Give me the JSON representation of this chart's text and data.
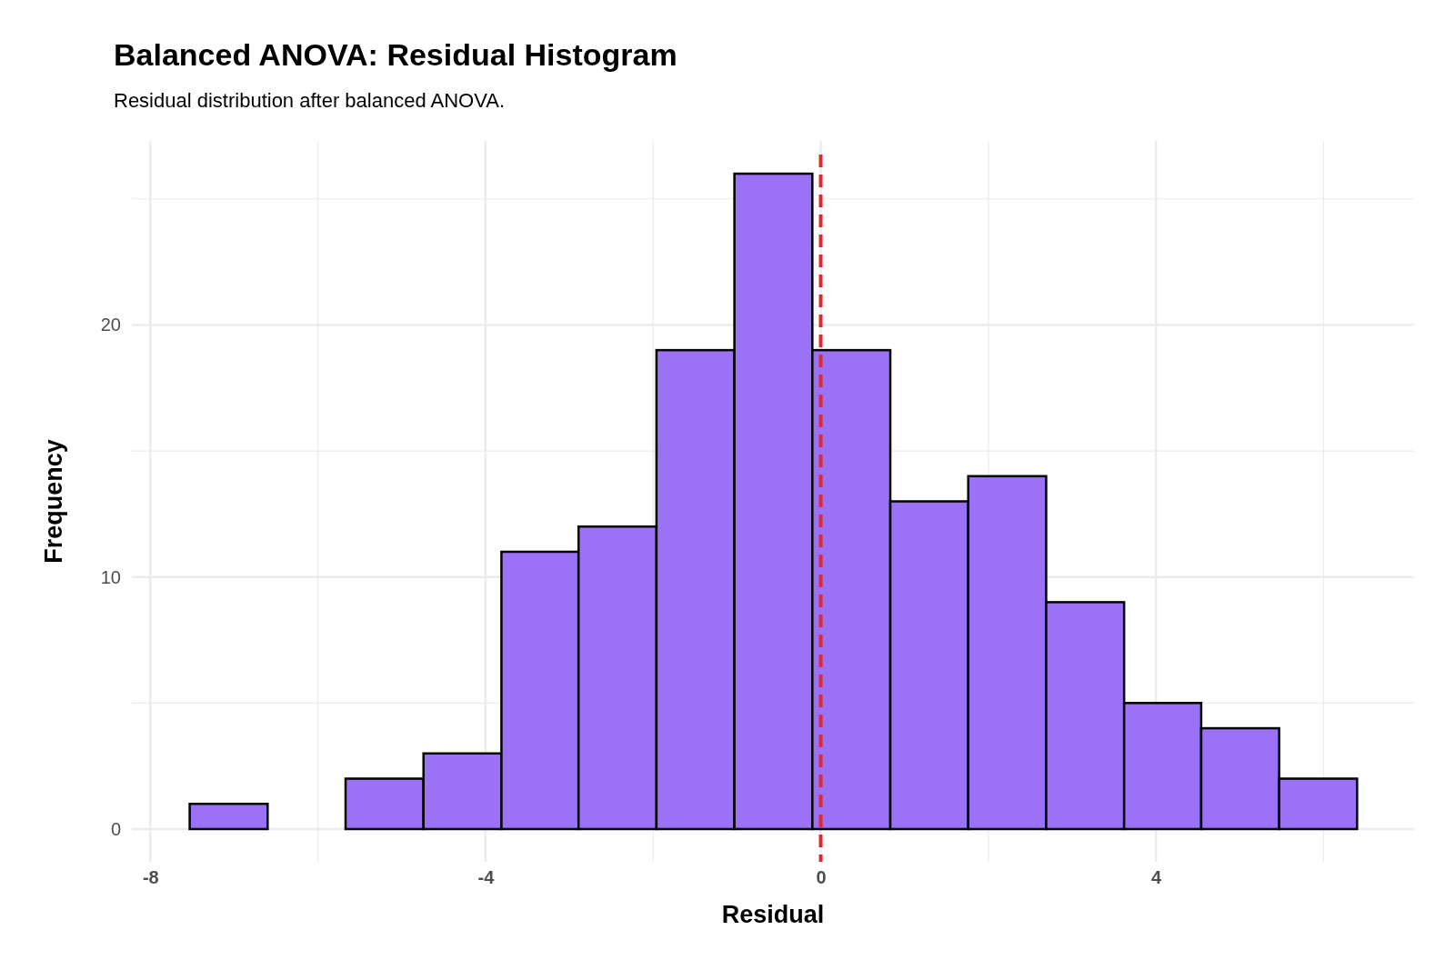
{
  "chart_data": {
    "type": "histogram",
    "title": "Balanced ANOVA: Residual Histogram",
    "subtitle": "Residual distribution after balanced ANOVA.",
    "xlabel": "Residual",
    "ylabel": "Frequency",
    "bins": [
      -7.53,
      -6.6,
      -5.67,
      -4.74,
      -3.81,
      -2.89,
      -1.96,
      -1.03,
      -0.1,
      0.83,
      1.76,
      2.69,
      3.62,
      4.54,
      5.47,
      6.4
    ],
    "values": [
      1,
      0,
      2,
      3,
      11,
      12,
      19,
      26,
      19,
      13,
      14,
      9,
      5,
      4,
      2
    ],
    "color": "#9b72f5",
    "xlim": [
      -8.22,
      7.08
    ],
    "ylim": [
      -1.3,
      27.3
    ],
    "xticks": [
      -8,
      {
        "value": -6,
        "label": null
      },
      -4,
      {
        "value": -2,
        "label": null
      },
      0,
      {
        "value": 2,
        "label": null
      },
      4,
      {
        "value": 6,
        "label": null
      }
    ],
    "yticks": [
      0,
      {
        "value": 5,
        "label": null
      },
      10,
      {
        "value": 15,
        "label": null
      },
      20,
      {
        "value": 25,
        "label": null
      }
    ],
    "grid": true,
    "ref_lines": [
      {
        "axis": "x",
        "value": 0,
        "color": "#e0282e",
        "line_style": "dashed"
      }
    ]
  }
}
